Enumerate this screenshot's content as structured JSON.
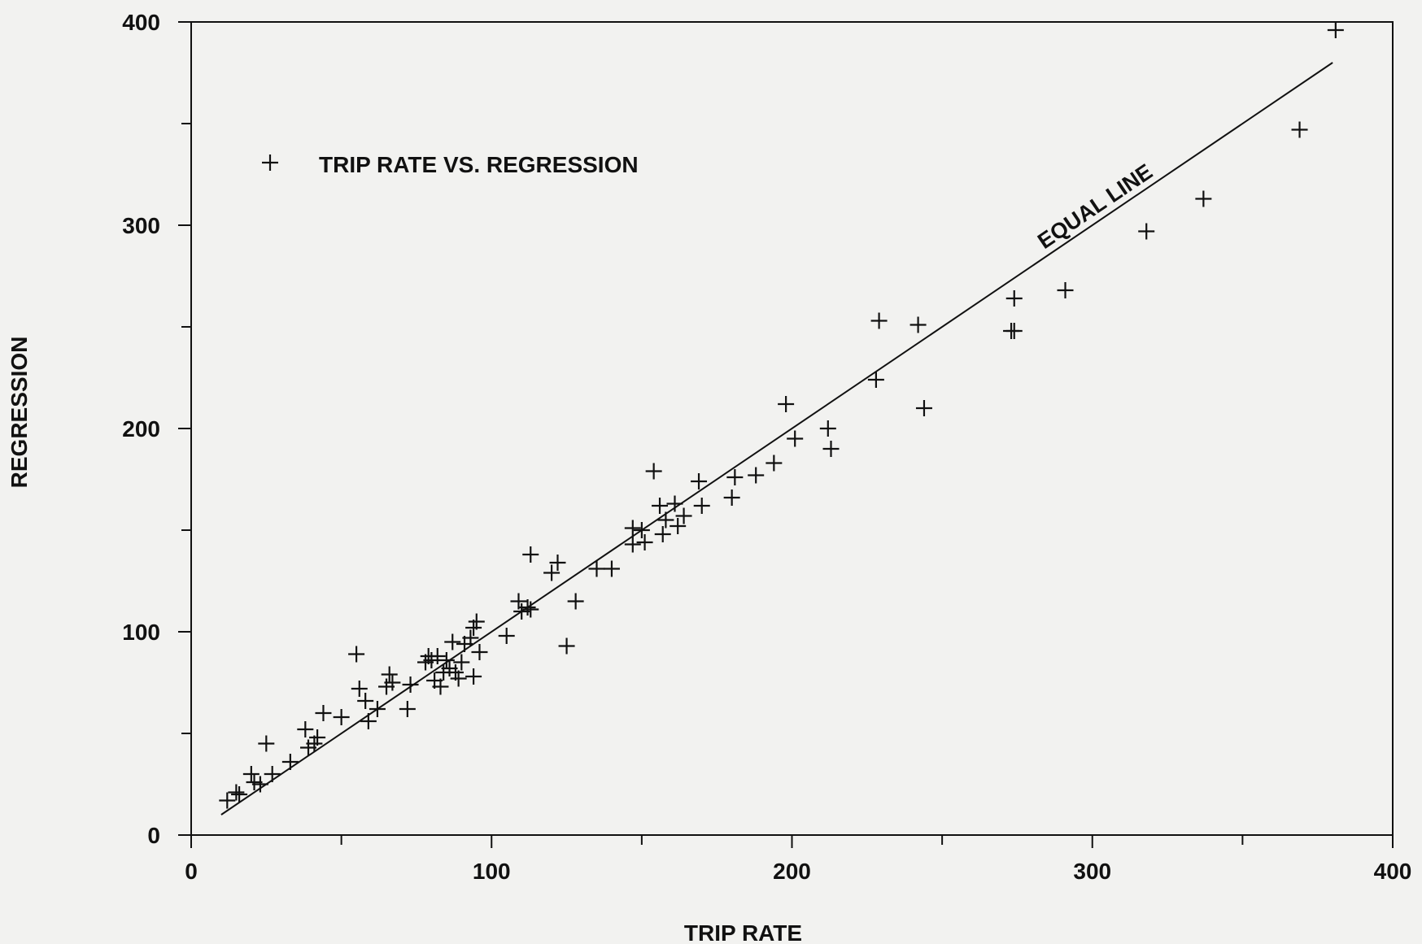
{
  "chart_data": {
    "type": "scatter",
    "title": "",
    "xlabel": "TRIP RATE",
    "ylabel": "REGRESSION",
    "xlim": [
      0,
      400
    ],
    "ylim": [
      0,
      400
    ],
    "x_ticks": [
      0,
      100,
      200,
      300,
      400
    ],
    "y_ticks": [
      0,
      100,
      200,
      300,
      400
    ],
    "x_minor_step": 50,
    "y_minor_step": 50,
    "grid": false,
    "legend": {
      "position": "top-left",
      "entries": [
        "TRIP RATE VS. REGRESSION"
      ]
    },
    "series": [
      {
        "name": "TRIP RATE VS. REGRESSION",
        "marker": "plus",
        "points": [
          [
            12,
            17
          ],
          [
            15,
            21
          ],
          [
            16,
            20
          ],
          [
            20,
            30
          ],
          [
            21,
            26
          ],
          [
            23,
            25
          ],
          [
            25,
            45
          ],
          [
            27,
            30
          ],
          [
            33,
            36
          ],
          [
            38,
            52
          ],
          [
            39,
            43
          ],
          [
            41,
            45
          ],
          [
            42,
            48
          ],
          [
            44,
            60
          ],
          [
            50,
            58
          ],
          [
            55,
            89
          ],
          [
            56,
            72
          ],
          [
            58,
            66
          ],
          [
            59,
            56
          ],
          [
            62,
            62
          ],
          [
            65,
            73
          ],
          [
            66,
            79
          ],
          [
            67,
            75
          ],
          [
            72,
            62
          ],
          [
            73,
            74
          ],
          [
            78,
            85
          ],
          [
            79,
            88
          ],
          [
            80,
            86
          ],
          [
            81,
            76
          ],
          [
            82,
            88
          ],
          [
            83,
            73
          ],
          [
            84,
            80
          ],
          [
            85,
            86
          ],
          [
            86,
            82
          ],
          [
            87,
            95
          ],
          [
            88,
            80
          ],
          [
            89,
            77
          ],
          [
            90,
            85
          ],
          [
            91,
            94
          ],
          [
            93,
            97
          ],
          [
            94,
            78
          ],
          [
            94,
            102
          ],
          [
            95,
            105
          ],
          [
            96,
            90
          ],
          [
            105,
            98
          ],
          [
            109,
            115
          ],
          [
            110,
            110
          ],
          [
            112,
            112
          ],
          [
            113,
            138
          ],
          [
            113,
            111
          ],
          [
            120,
            129
          ],
          [
            122,
            134
          ],
          [
            125,
            93
          ],
          [
            128,
            115
          ],
          [
            135,
            131
          ],
          [
            140,
            131
          ],
          [
            147,
            143
          ],
          [
            147,
            151
          ],
          [
            150,
            150
          ],
          [
            151,
            144
          ],
          [
            154,
            179
          ],
          [
            156,
            162
          ],
          [
            157,
            148
          ],
          [
            158,
            155
          ],
          [
            161,
            163
          ],
          [
            162,
            152
          ],
          [
            164,
            157
          ],
          [
            169,
            174
          ],
          [
            170,
            162
          ],
          [
            180,
            166
          ],
          [
            181,
            176
          ],
          [
            188,
            177
          ],
          [
            194,
            183
          ],
          [
            198,
            212
          ],
          [
            201,
            195
          ],
          [
            212,
            200
          ],
          [
            213,
            190
          ],
          [
            228,
            224
          ],
          [
            229,
            253
          ],
          [
            242,
            251
          ],
          [
            244,
            210
          ],
          [
            273,
            248
          ],
          [
            274,
            264
          ],
          [
            274,
            248
          ],
          [
            291,
            268
          ],
          [
            318,
            297
          ],
          [
            337,
            313
          ],
          [
            369,
            347
          ],
          [
            381,
            396
          ]
        ]
      }
    ],
    "reference_line": {
      "label": "EQUAL LINE",
      "x": [
        10,
        380
      ],
      "y": [
        10,
        380
      ]
    }
  }
}
